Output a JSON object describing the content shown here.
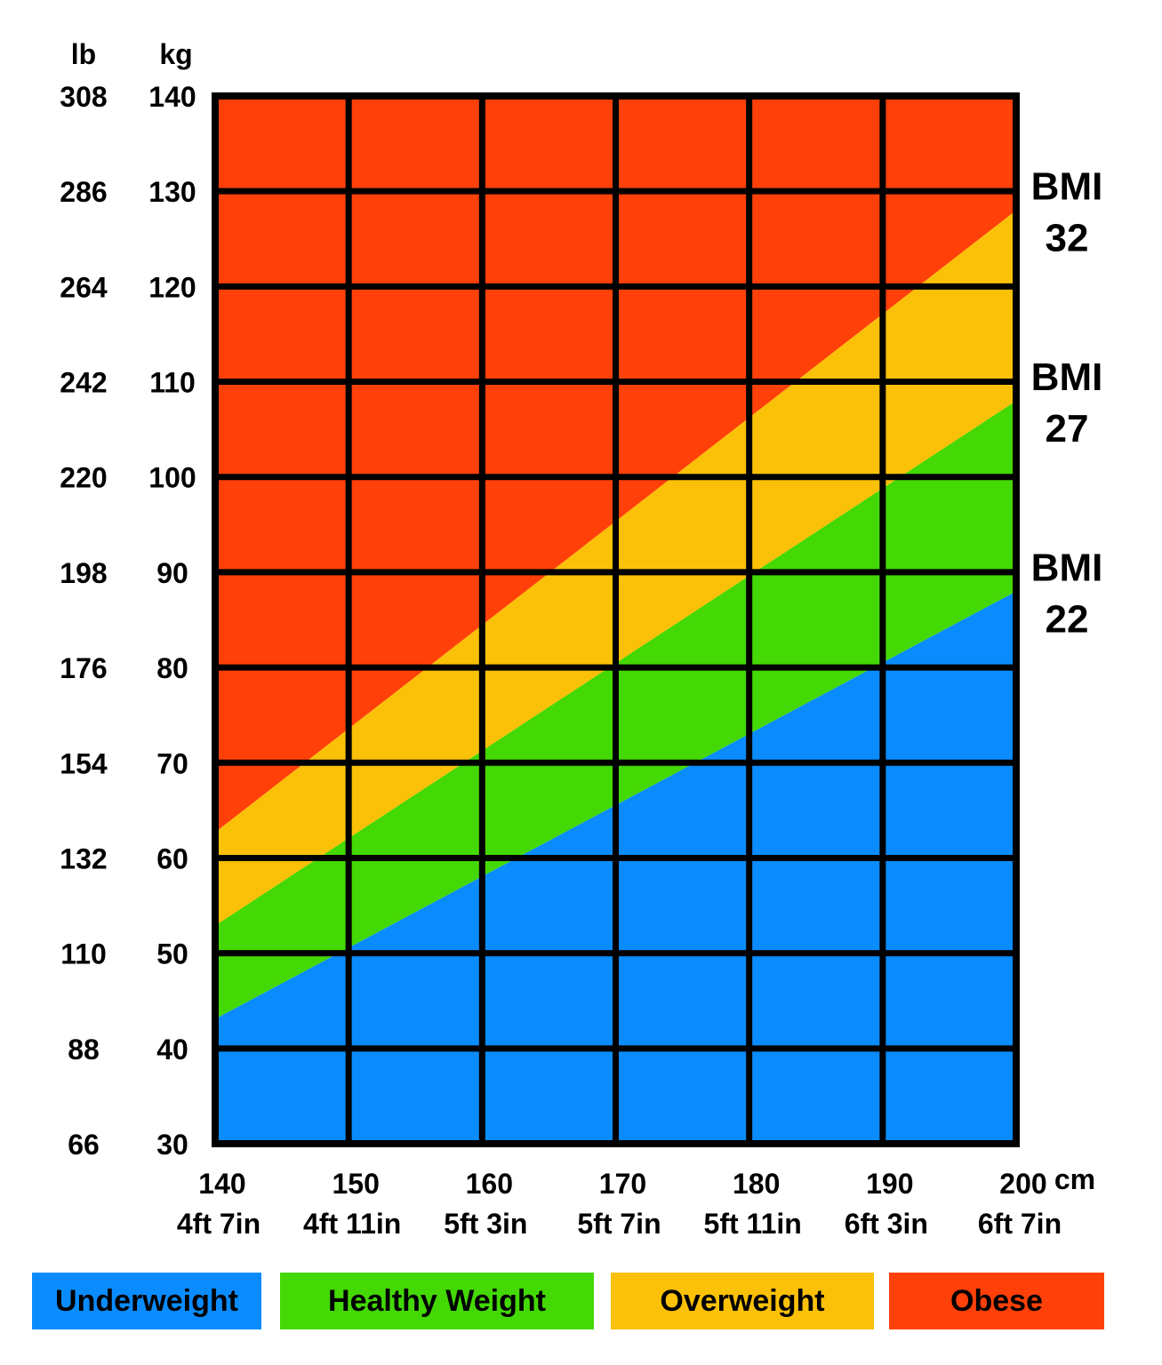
{
  "chart_data": {
    "type": "area",
    "title": "",
    "x_unit": "cm",
    "y_units": [
      "lb",
      "kg"
    ],
    "xlim": [
      140,
      200
    ],
    "ylim": [
      30,
      140
    ],
    "grid": true,
    "x_ticks": [
      {
        "cm": 140,
        "imperial": "4ft 7in"
      },
      {
        "cm": 150,
        "imperial": "4ft 11in"
      },
      {
        "cm": 160,
        "imperial": "5ft 3in"
      },
      {
        "cm": 170,
        "imperial": "5ft 7in"
      },
      {
        "cm": 180,
        "imperial": "5ft 11in"
      },
      {
        "cm": 190,
        "imperial": "6ft 3in"
      },
      {
        "cm": 200,
        "imperial": "6ft 7in"
      }
    ],
    "y_ticks": [
      {
        "kg": 140,
        "lb": 308
      },
      {
        "kg": 130,
        "lb": 286
      },
      {
        "kg": 120,
        "lb": 264
      },
      {
        "kg": 110,
        "lb": 242
      },
      {
        "kg": 100,
        "lb": 220
      },
      {
        "kg": 90,
        "lb": 198
      },
      {
        "kg": 80,
        "lb": 176
      },
      {
        "kg": 70,
        "lb": 154
      },
      {
        "kg": 60,
        "lb": 132
      },
      {
        "kg": 50,
        "lb": 110
      },
      {
        "kg": 40,
        "lb": 88
      },
      {
        "kg": 30,
        "lb": 66
      }
    ],
    "boundaries": [
      {
        "label_top": "BMI",
        "label_bottom": "22",
        "bmi": 22,
        "x": [
          140,
          200
        ],
        "y": [
          43.1,
          88.0
        ]
      },
      {
        "label_top": "BMI",
        "label_bottom": "27",
        "bmi": 27,
        "x": [
          140,
          200
        ],
        "y": [
          52.9,
          108.0
        ]
      },
      {
        "label_top": "BMI",
        "label_bottom": "32",
        "bmi": 32,
        "x": [
          140,
          200
        ],
        "y": [
          62.7,
          128.0
        ]
      }
    ],
    "categories": [
      {
        "name": "Underweight",
        "color": "#0a8cff"
      },
      {
        "name": "Healthy Weight",
        "color": "#44d804"
      },
      {
        "name": "Overweight",
        "color": "#fbc108"
      },
      {
        "name": "Obese",
        "color": "#ff4009"
      }
    ]
  }
}
